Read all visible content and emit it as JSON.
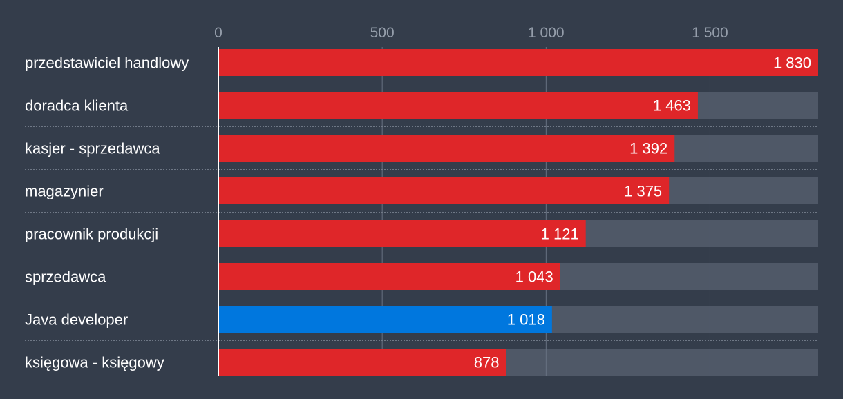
{
  "chart_data": {
    "type": "bar",
    "orientation": "horizontal",
    "categories": [
      "przedstawiciel handlowy",
      "doradca klienta",
      "kasjer - sprzedawca",
      "magazynier",
      "pracownik produkcji",
      "sprzedawca",
      "Java developer",
      "księgowa - księgowy"
    ],
    "values": [
      1830,
      1463,
      1392,
      1375,
      1121,
      1043,
      1018,
      878
    ],
    "value_labels": [
      "1 830",
      "1 463",
      "1 392",
      "1 375",
      "1 121",
      "1 043",
      "1 018",
      "878"
    ],
    "highlight_index": 6,
    "xlim": [
      0,
      1830
    ],
    "x_ticks": [
      0,
      500,
      1000,
      1500
    ],
    "x_tick_labels": [
      "0",
      "500",
      "1 000",
      "1 500"
    ],
    "axis_position": "top",
    "grid": true,
    "legend": "none"
  },
  "colors": {
    "background": "#343d4b",
    "track": "#4f5867",
    "bar": "#df2629",
    "highlight_bar": "#0077de",
    "gridline": "#687282",
    "tick_label": "#959eab",
    "category_label": "#ffffff",
    "value_label": "#ffffff",
    "separator": "#6f7886",
    "axis_line": "#ffffff"
  }
}
